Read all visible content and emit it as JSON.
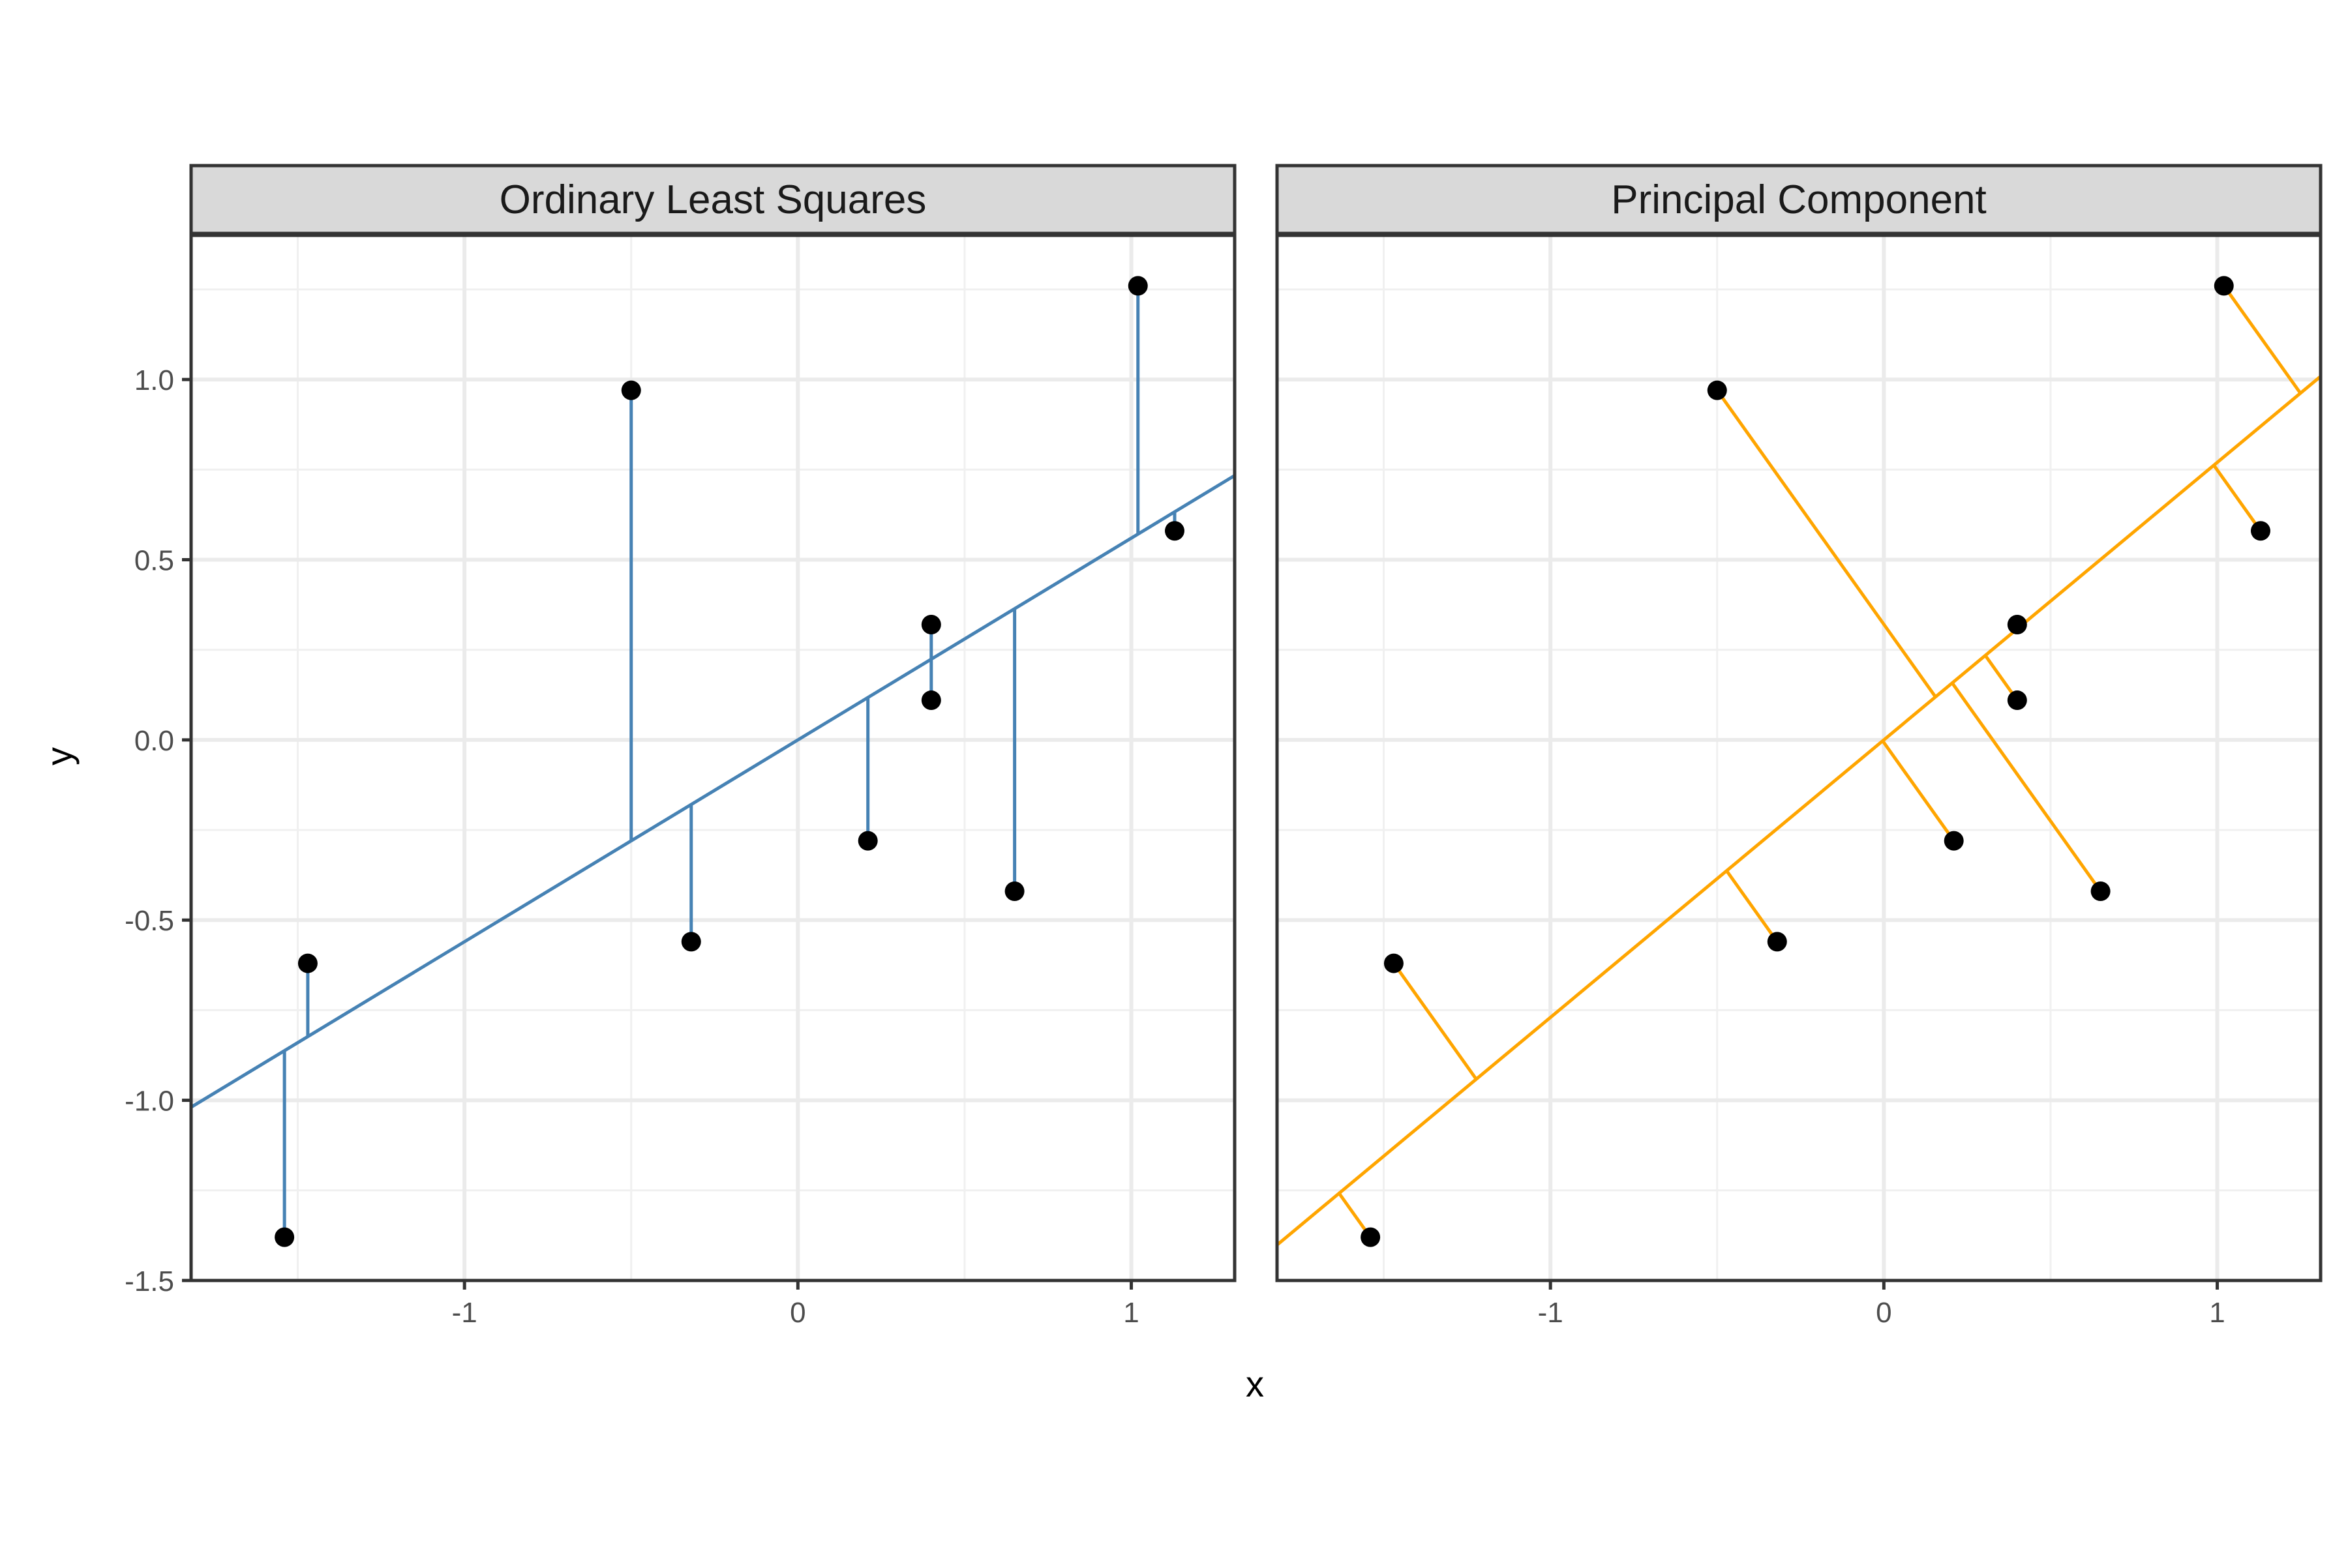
{
  "chart_data": {
    "type": "scatter",
    "xlabel": "x",
    "ylabel": "y",
    "xlim": [
      -1.82,
      1.31
    ],
    "ylim": [
      -1.5,
      1.4
    ],
    "x_ticks": [
      -1,
      0,
      1
    ],
    "x_tick_labels": [
      "-1",
      "0",
      "1"
    ],
    "y_ticks": [
      -1.5,
      -1.0,
      -0.5,
      0.0,
      0.5,
      1.0
    ],
    "y_tick_labels": [
      "-1.5",
      "-1.0",
      "-0.5",
      "0.0",
      "0.5",
      "1.0"
    ],
    "grid": true,
    "points": [
      {
        "x": -1.54,
        "y": -1.38
      },
      {
        "x": -1.47,
        "y": -0.62
      },
      {
        "x": -0.5,
        "y": 0.97
      },
      {
        "x": -0.32,
        "y": -0.56
      },
      {
        "x": 0.21,
        "y": -0.28
      },
      {
        "x": 0.4,
        "y": 0.32
      },
      {
        "x": 0.4,
        "y": 0.11
      },
      {
        "x": 0.65,
        "y": -0.42
      },
      {
        "x": 1.02,
        "y": 1.26
      },
      {
        "x": 1.13,
        "y": 0.58
      }
    ],
    "panels": [
      {
        "title": "Ordinary Least Squares",
        "method": "ols",
        "slope": 0.56,
        "intercept": 0.0,
        "color": "#4682B4"
      },
      {
        "title": "Principal Component",
        "method": "pca",
        "slope": 0.77,
        "intercept": 0.0,
        "color": "#FFA500"
      }
    ]
  }
}
